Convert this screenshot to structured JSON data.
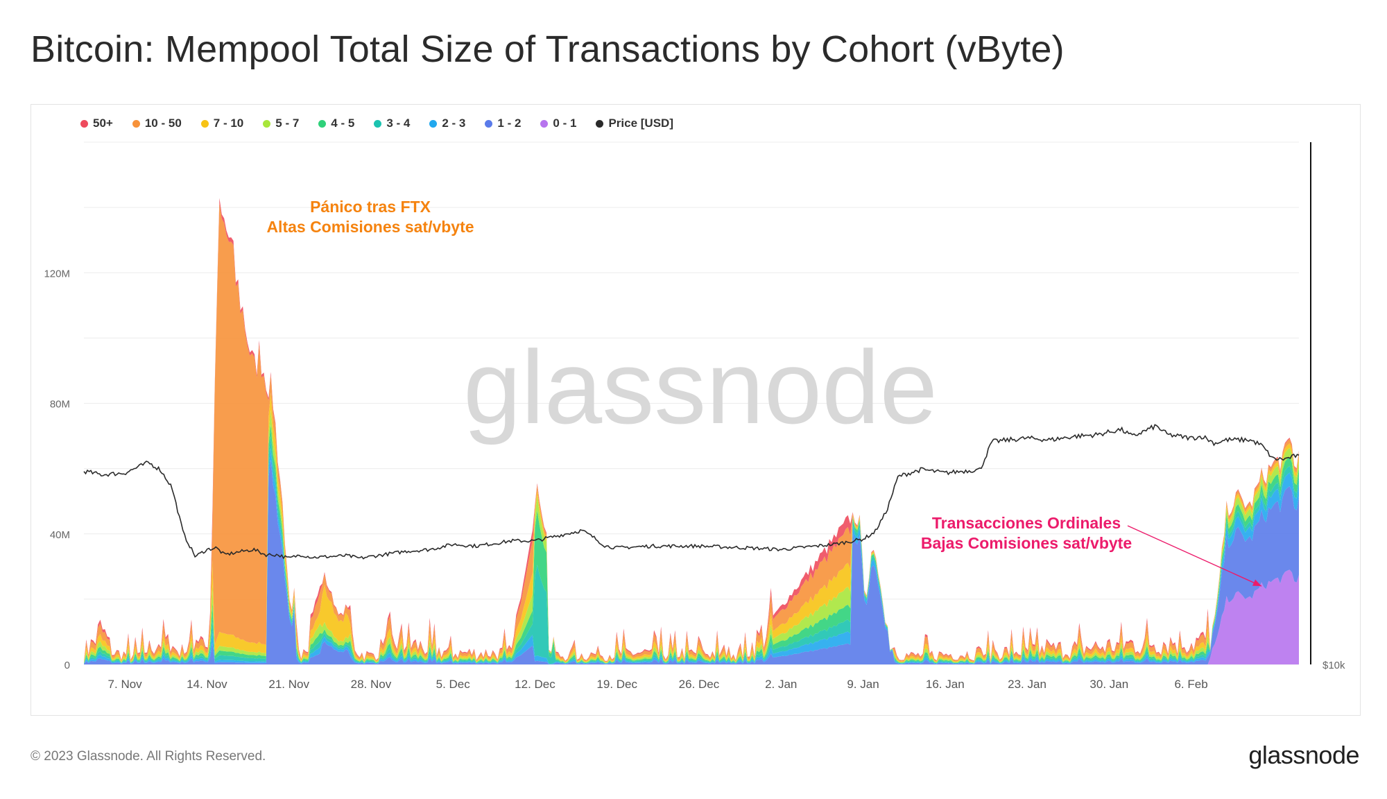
{
  "title": "Bitcoin: Mempool Total Size of Transactions by Cohort (vByte)",
  "footer": {
    "copyright": "© 2023 Glassnode. All Rights Reserved.",
    "brand": "glassnode"
  },
  "watermark": "glassnode",
  "chart_data": {
    "type": "area",
    "stacked": true,
    "title": "Bitcoin: Mempool Total Size of Transactions by Cohort (vByte)",
    "y_axis": {
      "ticks": [
        "0",
        "40M",
        "80M",
        "120M"
      ],
      "tick_values": [
        0,
        40,
        80,
        120
      ],
      "unit": "M vByte",
      "ylim": [
        0,
        160
      ]
    },
    "right_axis": {
      "label": "$10k"
    },
    "x_axis": {
      "ticks": [
        "7. Nov",
        "14. Nov",
        "21. Nov",
        "28. Nov",
        "5. Dec",
        "12. Dec",
        "19. Dec",
        "26. Dec",
        "2. Jan",
        "9. Jan",
        "16. Jan",
        "23. Jan",
        "30. Jan",
        "6. Feb"
      ],
      "tick_days": [
        7,
        14,
        21,
        28,
        35,
        42,
        49,
        56,
        63,
        70,
        77,
        84,
        91,
        98
      ],
      "day_origin": "2022-11-01",
      "xlim": [
        3.5,
        107.2
      ]
    },
    "legend": [
      {
        "label": "50+",
        "color": "#ee4b5d"
      },
      {
        "label": "10 - 50",
        "color": "#f7923a"
      },
      {
        "label": "7 - 10",
        "color": "#f7c315"
      },
      {
        "label": "5 - 7",
        "color": "#a8e63b"
      },
      {
        "label": "4 - 5",
        "color": "#2fd17a"
      },
      {
        "label": "3 - 4",
        "color": "#1cc3b0"
      },
      {
        "label": "2 - 3",
        "color": "#21a8ee"
      },
      {
        "label": "1 - 2",
        "color": "#5a7bea"
      },
      {
        "label": "0 - 1",
        "color": "#b774ee"
      },
      {
        "label": "Price [USD]",
        "color": "#2a2a2a"
      }
    ],
    "total_size_series": {
      "day": [
        3.5,
        5,
        6,
        8,
        10,
        12,
        13.5,
        14.2,
        15,
        15.5,
        16,
        16.5,
        17,
        17.5,
        18,
        18.5,
        19,
        19.6,
        20,
        20.5,
        21,
        22,
        24,
        25,
        26,
        27,
        28,
        30,
        35,
        40,
        42.2,
        42.4,
        43,
        43.2,
        44,
        50,
        60,
        69.2,
        69.7,
        70.2,
        70.8,
        71,
        71.4,
        71.9,
        72.4,
        73,
        74,
        80,
        90,
        95,
        99,
        100,
        101,
        102,
        103,
        104,
        105,
        106,
        106.5,
        107,
        107.2
      ],
      "value": [
        3,
        12,
        4,
        3,
        8,
        4,
        12,
        4,
        140,
        137,
        132,
        120,
        112,
        102,
        92,
        98,
        90,
        85,
        68,
        48,
        20,
        5,
        28,
        18,
        12,
        4,
        3,
        8,
        4,
        4,
        54,
        53,
        40,
        5,
        3,
        4,
        4,
        47,
        45,
        20,
        36,
        33,
        28,
        15,
        8,
        4,
        3,
        4,
        6,
        8,
        8,
        12,
        48,
        52,
        49,
        58,
        62,
        65,
        70,
        60,
        66
      ],
      "dominant_cohort": {
        "14.5-19 Nov": "10 - 50",
        "19-21 Nov": "1 - 2",
        "24-26 Nov": "7 - 10",
        "11-12 Dec": "3 - 4",
        "9-11 Jan": "1 - 2",
        "Feb": "0 - 1 / 1 - 2"
      }
    },
    "price_series": {
      "unit": "USD",
      "day": [
        3.5,
        5,
        7,
        9,
        10,
        11,
        12,
        13,
        14,
        14.8,
        15.5,
        17,
        18,
        19,
        20,
        21,
        22,
        23,
        26,
        27,
        29,
        31,
        33,
        35,
        37,
        39,
        40,
        42,
        44,
        46,
        47,
        48,
        49,
        52,
        56,
        60,
        63,
        66,
        67.5,
        70,
        71,
        72,
        73,
        74,
        75,
        77,
        80,
        81,
        84,
        86,
        88,
        90,
        92,
        93,
        95,
        96,
        98,
        99,
        100,
        101,
        103,
        104,
        105,
        106,
        107,
        107.2
      ],
      "value": [
        21100,
        20900,
        21000,
        21600,
        21200,
        20200,
        17500,
        16200,
        16600,
        16700,
        16300,
        16500,
        16600,
        16300,
        16300,
        16100,
        16300,
        16150,
        16250,
        16100,
        16300,
        16500,
        16600,
        16900,
        16800,
        17000,
        17100,
        17100,
        17400,
        17700,
        17300,
        16800,
        16700,
        16800,
        16800,
        16700,
        16600,
        16800,
        16900,
        17200,
        17600,
        18800,
        20800,
        21000,
        21200,
        21000,
        21200,
        22800,
        23000,
        22900,
        23100,
        23200,
        23500,
        23100,
        23700,
        23200,
        23000,
        23100,
        22700,
        22900,
        22900,
        22600,
        21800,
        21800,
        22000,
        21900
      ]
    },
    "annotations": [
      {
        "lines": [
          "Pánico tras FTX",
          "Altas Comisiones sat/vbyte"
        ],
        "color": "#f5830f"
      },
      {
        "lines": [
          "Transacciones Ordinales",
          "Bajas Comisiones sat/vbyte"
        ],
        "color": "#ec1b6b",
        "arrow_to": {
          "day": 104,
          "value": 24
        }
      }
    ]
  }
}
